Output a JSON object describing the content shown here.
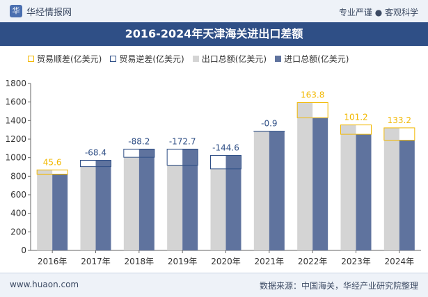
{
  "header": {
    "brand": "华经情报网",
    "logo_glyph": "华",
    "tagline": "专业严谨 ● 客观科学"
  },
  "chart_data": {
    "type": "bar",
    "title": "2016-2024年天津海关进出口差额",
    "categories": [
      "2016年",
      "2017年",
      "2018年",
      "2019年",
      "2020年",
      "2021年",
      "2022年",
      "2023年",
      "2024年"
    ],
    "series": [
      {
        "name": "出口总额(亿美元)",
        "values": [
          868,
          903,
          1004,
          919,
          879,
          1284,
          1594,
          1353,
          1321
        ],
        "color": "#d4d4d4"
      },
      {
        "name": "进口总额(亿美元)",
        "values": [
          822,
          971,
          1092,
          1092,
          1024,
          1285,
          1430,
          1252,
          1188
        ],
        "color": "#5f739e"
      }
    ],
    "balance": {
      "name_surplus": "贸易顺差(亿美元)",
      "name_deficit": "贸易逆差(亿美元)",
      "values": [
        45.6,
        -68.4,
        -88.2,
        -172.7,
        -144.6,
        -0.9,
        163.8,
        101.2,
        133.2
      ],
      "labels": [
        "45.6",
        "-68.4",
        "-88.2",
        "-172.7",
        "-144.6",
        "-0.9",
        "163.8",
        "101.2",
        "133.2"
      ],
      "surplus_color": "#f2b800",
      "deficit_color": "#2f4f86"
    },
    "yticks": [
      "0",
      "200",
      "400",
      "600",
      "800",
      "1000",
      "1200",
      "1400",
      "1600",
      "1800"
    ],
    "ylim": [
      0,
      1800
    ],
    "grid": false,
    "legend_position": "top-left"
  },
  "footer": {
    "site": "www.huaon.com",
    "source": "数据来源：中国海关，华经产业研究院整理"
  }
}
